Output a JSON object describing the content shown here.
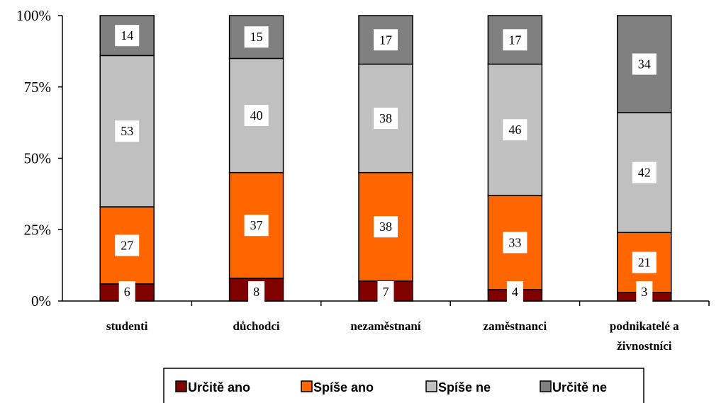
{
  "chart_data": {
    "type": "bar",
    "stacked": true,
    "normalized_percent": true,
    "categories": [
      "studenti",
      "důchodci",
      "nezaměstnaní",
      "zaměstnanci",
      [
        "podnikatelé a",
        "živnostníci"
      ]
    ],
    "series": [
      {
        "name": "Určitě ano",
        "color": "#800000",
        "values": [
          6,
          8,
          7,
          4,
          3
        ]
      },
      {
        "name": "Spíše ano",
        "color": "#ff6600",
        "values": [
          27,
          37,
          38,
          33,
          21
        ]
      },
      {
        "name": "Spíše ne",
        "color": "#c0c0c0",
        "values": [
          53,
          40,
          38,
          46,
          42
        ]
      },
      {
        "name": "Určitě ne",
        "color": "#808080",
        "values": [
          14,
          15,
          17,
          17,
          34
        ]
      }
    ],
    "yticks": [
      "0%",
      "25%",
      "50%",
      "75%",
      "100%"
    ],
    "ylim": [
      0,
      100
    ],
    "legend_position": "bottom",
    "grid": false
  }
}
